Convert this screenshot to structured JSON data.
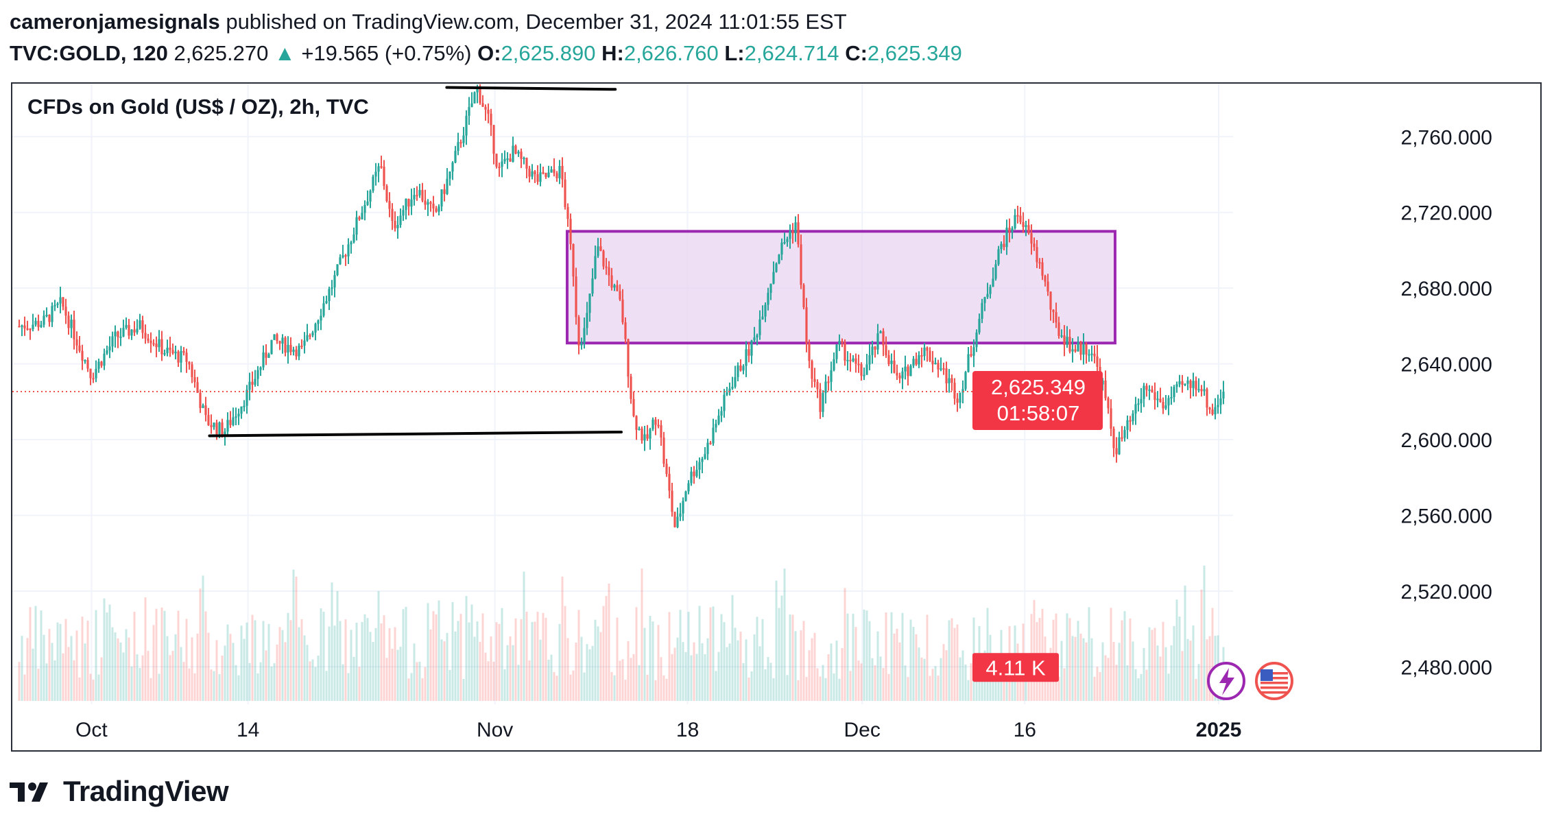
{
  "header": {
    "author": "cameronjamesignals",
    "published_text": "published on TradingView.com, December 31, 2024 11:01:55 EST",
    "symbol": "TVC:GOLD, 120",
    "last_price": "2,625.270",
    "change": "+19.565 (+0.75%)",
    "open_label": "O:",
    "open_value": "2,625.890",
    "high_label": "H:",
    "high_value": "2,626.760",
    "low_label": "L:",
    "low_value": "2,624.714",
    "close_label": "C:",
    "close_value": "2,625.349"
  },
  "colors": {
    "up": "#26a69a",
    "down": "#ef5350",
    "box_fill": "#ead4f0",
    "box_stroke": "#9c27b0",
    "label_bg": "#f23645"
  },
  "chart_data": {
    "type": "candlestick",
    "title": "CFDs on Gold (US$ / OZ), 2h, TVC",
    "y_ticks": [
      "2,760.000",
      "2,720.000",
      "2,680.000",
      "2,640.000",
      "2,600.000",
      "2,560.000",
      "2,520.000",
      "2,480.000"
    ],
    "y_tick_values": [
      2760,
      2720,
      2680,
      2640,
      2600,
      2560,
      2520,
      2480
    ],
    "ylim": [
      2462,
      2788
    ],
    "x_ticks": [
      {
        "label": "Oct",
        "index": 0.06
      },
      {
        "label": "14",
        "index": 0.19
      },
      {
        "label": "Nov",
        "index": 0.395
      },
      {
        "label": "18",
        "index": 0.555
      },
      {
        "label": "Dec",
        "index": 0.7
      },
      {
        "label": "16",
        "index": 0.835
      },
      {
        "label": "2025",
        "index": 0.996,
        "bold": true
      }
    ],
    "price_path": [
      [
        0.0,
        2660
      ],
      [
        0.02,
        2662
      ],
      [
        0.035,
        2672
      ],
      [
        0.06,
        2634
      ],
      [
        0.08,
        2654
      ],
      [
        0.1,
        2660
      ],
      [
        0.12,
        2647
      ],
      [
        0.14,
        2642
      ],
      [
        0.155,
        2610
      ],
      [
        0.17,
        2604
      ],
      [
        0.19,
        2625
      ],
      [
        0.21,
        2652
      ],
      [
        0.235,
        2647
      ],
      [
        0.26,
        2682
      ],
      [
        0.285,
        2722
      ],
      [
        0.3,
        2745
      ],
      [
        0.31,
        2712
      ],
      [
        0.33,
        2733
      ],
      [
        0.345,
        2718
      ],
      [
        0.36,
        2745
      ],
      [
        0.38,
        2786
      ],
      [
        0.39,
        2768
      ],
      [
        0.398,
        2742
      ],
      [
        0.41,
        2752
      ],
      [
        0.43,
        2737
      ],
      [
        0.45,
        2742
      ],
      [
        0.46,
        2690
      ],
      [
        0.464,
        2652
      ],
      [
        0.47,
        2658
      ],
      [
        0.48,
        2702
      ],
      [
        0.5,
        2670
      ],
      [
        0.51,
        2612
      ],
      [
        0.52,
        2598
      ],
      [
        0.53,
        2614
      ],
      [
        0.535,
        2590
      ],
      [
        0.545,
        2552
      ],
      [
        0.555,
        2578
      ],
      [
        0.57,
        2594
      ],
      [
        0.59,
        2628
      ],
      [
        0.61,
        2652
      ],
      [
        0.63,
        2698
      ],
      [
        0.645,
        2715
      ],
      [
        0.655,
        2642
      ],
      [
        0.665,
        2618
      ],
      [
        0.68,
        2650
      ],
      [
        0.7,
        2634
      ],
      [
        0.715,
        2655
      ],
      [
        0.73,
        2630
      ],
      [
        0.75,
        2648
      ],
      [
        0.765,
        2638
      ],
      [
        0.78,
        2622
      ],
      [
        0.8,
        2670
      ],
      [
        0.815,
        2702
      ],
      [
        0.83,
        2720
      ],
      [
        0.85,
        2688
      ],
      [
        0.86,
        2660
      ],
      [
        0.875,
        2648
      ],
      [
        0.89,
        2648
      ],
      [
        0.9,
        2628
      ],
      [
        0.91,
        2594
      ],
      [
        0.925,
        2612
      ],
      [
        0.935,
        2628
      ],
      [
        0.95,
        2618
      ],
      [
        0.965,
        2628
      ],
      [
        0.98,
        2630
      ],
      [
        0.99,
        2614
      ],
      [
        1.0,
        2625
      ]
    ],
    "shapes": [
      {
        "type": "box",
        "x0": 0.455,
        "x1": 0.91,
        "y0": 2651,
        "y1": 2710
      },
      {
        "type": "line",
        "x0": 0.355,
        "y0": 2786,
        "x1": 0.495,
        "y1": 2785
      },
      {
        "type": "line",
        "x0": 0.158,
        "y0": 2602,
        "x1": 0.5,
        "y1": 2604
      }
    ],
    "last_price_label": "2,625.349",
    "last_price_value": 2625.349,
    "countdown": "01:58:07",
    "volume_label": "4.11 K"
  },
  "footer": {
    "brand": "TradingView"
  }
}
